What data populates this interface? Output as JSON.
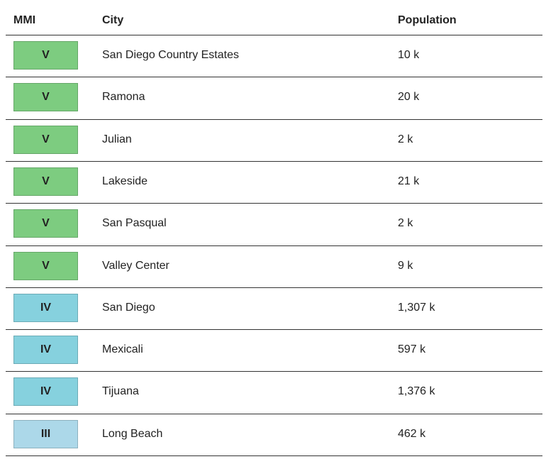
{
  "table": {
    "header": [
      "MMI",
      "City",
      "Population"
    ],
    "rows": [
      {
        "mmi": "V",
        "color": "#7dcc80",
        "city": "San Diego Country Estates",
        "population": "10 k"
      },
      {
        "mmi": "V",
        "color": "#7dcc80",
        "city": "Ramona",
        "population": "20 k"
      },
      {
        "mmi": "V",
        "color": "#7dcc80",
        "city": "Julian",
        "population": "2 k"
      },
      {
        "mmi": "V",
        "color": "#7dcc80",
        "city": "Lakeside",
        "population": "21 k"
      },
      {
        "mmi": "V",
        "color": "#7dcc80",
        "city": "San Pasqual",
        "population": "2 k"
      },
      {
        "mmi": "V",
        "color": "#7dcc80",
        "city": "Valley Center",
        "population": "9 k"
      },
      {
        "mmi": "IV",
        "color": "#86d1de",
        "city": "San Diego",
        "population": "1,307 k"
      },
      {
        "mmi": "IV",
        "color": "#86d1de",
        "city": "Mexicali",
        "population": "597 k"
      },
      {
        "mmi": "IV",
        "color": "#86d1de",
        "city": "Tijuana",
        "population": "1,376 k"
      },
      {
        "mmi": "III",
        "color": "#acd8e9",
        "city": "Long Beach",
        "population": "462 k"
      }
    ]
  }
}
